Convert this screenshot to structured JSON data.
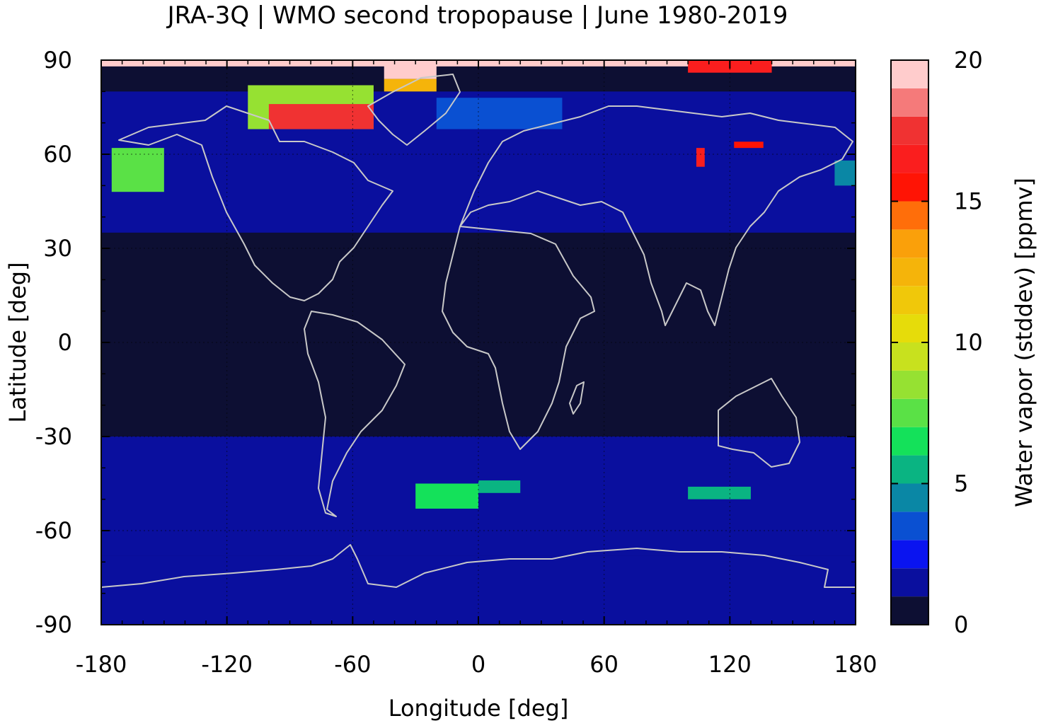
{
  "chart_data": {
    "type": "heatmap",
    "title": "JRA-3Q | WMO second tropopause | June 1980-2019",
    "xlabel": "Longitude [deg]",
    "ylabel": "Latitude [deg]",
    "xlim": [
      -180,
      180
    ],
    "ylim": [
      -90,
      90
    ],
    "x_ticks": [
      "-180",
      "-120",
      "-60",
      "0",
      "60",
      "120",
      "180"
    ],
    "y_ticks": [
      "90",
      "60",
      "30",
      "0",
      "-30",
      "-60",
      "-90"
    ],
    "x_tick_values": [
      -180,
      -120,
      -60,
      0,
      60,
      120,
      180
    ],
    "y_tick_values": [
      90,
      60,
      30,
      0,
      -30,
      -60,
      -90
    ],
    "grid": true,
    "coastlines": true,
    "colorbar": {
      "label": "Water vapor (stddev) [ppmv]",
      "range": [
        0,
        20
      ],
      "ticks": [
        "0",
        "5",
        "10",
        "15",
        "20"
      ],
      "tick_values": [
        0,
        5,
        10,
        15,
        20
      ],
      "levels": [
        {
          "from": 0,
          "to": 1,
          "color": "#0d0f33"
        },
        {
          "from": 1,
          "to": 2,
          "color": "#0a0f9e"
        },
        {
          "from": 2,
          "to": 3,
          "color": "#0a14f0"
        },
        {
          "from": 3,
          "to": 4,
          "color": "#0a50d2"
        },
        {
          "from": 4,
          "to": 5,
          "color": "#0a87a5"
        },
        {
          "from": 5,
          "to": 6,
          "color": "#0ab482"
        },
        {
          "from": 6,
          "to": 7,
          "color": "#14e15a"
        },
        {
          "from": 7,
          "to": 8,
          "color": "#5ae146"
        },
        {
          "from": 8,
          "to": 9,
          "color": "#96e132"
        },
        {
          "from": 9,
          "to": 10,
          "color": "#c8e11e"
        },
        {
          "from": 10,
          "to": 11,
          "color": "#e6dc0a"
        },
        {
          "from": 11,
          "to": 12,
          "color": "#f0c80a"
        },
        {
          "from": 12,
          "to": 13,
          "color": "#f5b40a"
        },
        {
          "from": 13,
          "to": 14,
          "color": "#faa00a"
        },
        {
          "from": 14,
          "to": 15,
          "color": "#ff6e0a"
        },
        {
          "from": 15,
          "to": 16,
          "color": "#ff1405"
        },
        {
          "from": 16,
          "to": 17,
          "color": "#fa1e1e"
        },
        {
          "from": 17,
          "to": 18,
          "color": "#f03232"
        },
        {
          "from": 18,
          "to": 19,
          "color": "#f57a7a"
        },
        {
          "from": 19,
          "to": 20,
          "color": "#ffcccc"
        }
      ]
    },
    "regions": [
      {
        "lon": [
          -180,
          180
        ],
        "lat": [
          -90,
          -68
        ],
        "value": 1.5
      },
      {
        "lon": [
          -180,
          180
        ],
        "lat": [
          -68,
          -30
        ],
        "value": 1.3
      },
      {
        "lon": [
          -180,
          180
        ],
        "lat": [
          35,
          80
        ],
        "value": 1.3
      },
      {
        "lon": [
          -180,
          180
        ],
        "lat": [
          88,
          90
        ],
        "value": 19.5
      },
      {
        "lon": [
          -110,
          -50
        ],
        "lat": [
          68,
          82
        ],
        "value": 8
      },
      {
        "lon": [
          -100,
          -50
        ],
        "lat": [
          68,
          76
        ],
        "value": 17
      },
      {
        "lon": [
          -45,
          -20
        ],
        "lat": [
          84,
          90
        ],
        "value": 19
      },
      {
        "lon": [
          -45,
          -20
        ],
        "lat": [
          80,
          84
        ],
        "value": 12
      },
      {
        "lon": [
          100,
          140
        ],
        "lat": [
          86,
          90
        ],
        "value": 16
      },
      {
        "lon": [
          -175,
          -150
        ],
        "lat": [
          48,
          62
        ],
        "value": 7
      },
      {
        "lon": [
          -30,
          0
        ],
        "lat": [
          -53,
          -45
        ],
        "value": 6
      },
      {
        "lon": [
          0,
          20
        ],
        "lat": [
          -48,
          -44
        ],
        "value": 5
      },
      {
        "lon": [
          100,
          130
        ],
        "lat": [
          -50,
          -46
        ],
        "value": 5
      },
      {
        "lon": [
          170,
          180
        ],
        "lat": [
          50,
          58
        ],
        "value": 4
      },
      {
        "lon": [
          -20,
          40
        ],
        "lat": [
          68,
          78
        ],
        "value": 3
      },
      {
        "lon": [
          104,
          108
        ],
        "lat": [
          56,
          62
        ],
        "value": 16
      },
      {
        "lon": [
          122,
          136
        ],
        "lat": [
          62,
          64
        ],
        "value": 15
      }
    ]
  }
}
